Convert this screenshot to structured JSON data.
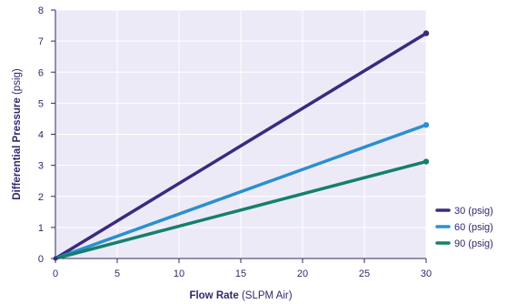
{
  "chart_data": {
    "type": "line",
    "x": [
      0,
      30
    ],
    "series": [
      {
        "name": "30 (psig)",
        "color": "#3b2a7e",
        "values": [
          0,
          7.25
        ]
      },
      {
        "name": "60 (psig)",
        "color": "#2b8fd0",
        "values": [
          0,
          4.3
        ]
      },
      {
        "name": "90 (psig)",
        "color": "#157f6e",
        "values": [
          0,
          3.12
        ]
      }
    ],
    "xlabel_bold": "Flow Rate",
    "xlabel_unit": "(SLPM Air)",
    "ylabel_bold": "Differential Pressure",
    "ylabel_unit": "(psig)",
    "xlim": [
      0,
      30
    ],
    "ylim": [
      0,
      8
    ],
    "xticks": [
      0,
      5,
      10,
      15,
      20,
      25,
      30
    ],
    "yticks": [
      0,
      1,
      2,
      3,
      4,
      5,
      6,
      7,
      8
    ],
    "grid": true,
    "legend_position": "bottom-right",
    "plot_background": "#eceaf6",
    "grid_color": "#ffffff",
    "text_color": "#2f2a6b"
  }
}
